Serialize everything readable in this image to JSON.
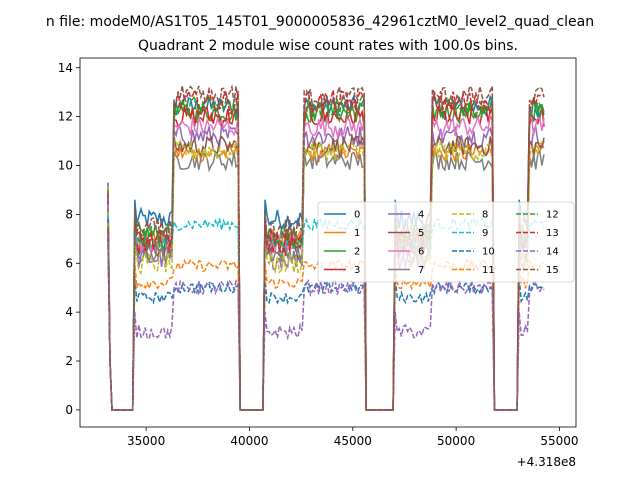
{
  "chart_data": {
    "type": "line",
    "suptitle": "n file: modeM0/AS1T05_145T01_9000005836_42961cztM0_level2_quad_clean",
    "title": "Quadrant 2 module wise count rates with 100.0s bins.",
    "xlabel": "",
    "ylabel": "",
    "x_offset_label": "+4.318e8",
    "xlim": [
      31800,
      55800
    ],
    "ylim": [
      -0.7,
      14.4
    ],
    "xticks": [
      35000,
      40000,
      45000,
      50000,
      55000
    ],
    "xtick_labels": [
      "35000",
      "40000",
      "45000",
      "50000",
      "55000"
    ],
    "yticks": [
      0,
      2,
      4,
      6,
      8,
      10,
      12,
      14
    ],
    "ytick_labels": [
      "0",
      "2",
      "4",
      "6",
      "8",
      "10",
      "12",
      "14"
    ],
    "grid": false,
    "legend_position": "center-right",
    "legend_columns": 4,
    "active_windows": [
      {
        "rise": 34400,
        "fall": 39450
      },
      {
        "rise": 40700,
        "fall": 45600
      },
      {
        "rise": 47000,
        "fall": 51800
      },
      {
        "rise": 53000,
        "fall": 54300
      }
    ],
    "x_start": 33150,
    "spike_at_start": 9.3,
    "series": [
      {
        "name": "0",
        "color": "#1f77b4",
        "dash": "solid",
        "lo": 7.8,
        "hi": 12.4
      },
      {
        "name": "1",
        "color": "#ff7f0e",
        "dash": "solid",
        "lo": 7.0,
        "hi": 10.5
      },
      {
        "name": "2",
        "color": "#2ca02c",
        "dash": "solid",
        "lo": 7.2,
        "hi": 12.2
      },
      {
        "name": "3",
        "color": "#d62728",
        "dash": "solid",
        "lo": 6.8,
        "hi": 12.0
      },
      {
        "name": "4",
        "color": "#9467bd",
        "dash": "solid",
        "lo": 6.2,
        "hi": 11.2
      },
      {
        "name": "5",
        "color": "#8c564b",
        "dash": "solid",
        "lo": 6.6,
        "hi": 10.8
      },
      {
        "name": "6",
        "color": "#e377c2",
        "dash": "solid",
        "lo": 6.9,
        "hi": 11.6
      },
      {
        "name": "7",
        "color": "#7f7f7f",
        "dash": "solid",
        "lo": 6.4,
        "hi": 10.2
      },
      {
        "name": "8",
        "color": "#bcbd22",
        "dash": "dashed",
        "lo": 6.0,
        "hi": 10.6
      },
      {
        "name": "9",
        "color": "#17becf",
        "dash": "dashed",
        "lo": 6.8,
        "hi": 7.6
      },
      {
        "name": "10",
        "color": "#1f77b4",
        "dash": "dashed",
        "lo": 4.6,
        "hi": 5.0
      },
      {
        "name": "11",
        "color": "#ff7f0e",
        "dash": "dashed",
        "lo": 5.2,
        "hi": 5.9
      },
      {
        "name": "12",
        "color": "#2ca02c",
        "dash": "dashed",
        "lo": 7.0,
        "hi": 12.4
      },
      {
        "name": "13",
        "color": "#d62728",
        "dash": "dashed",
        "lo": 6.9,
        "hi": 12.6
      },
      {
        "name": "14",
        "color": "#9467bd",
        "dash": "dashed",
        "lo": 3.2,
        "hi": 5.0
      },
      {
        "name": "15",
        "color": "#8c564b",
        "dash": "dashed",
        "lo": 7.4,
        "hi": 12.8
      }
    ]
  }
}
